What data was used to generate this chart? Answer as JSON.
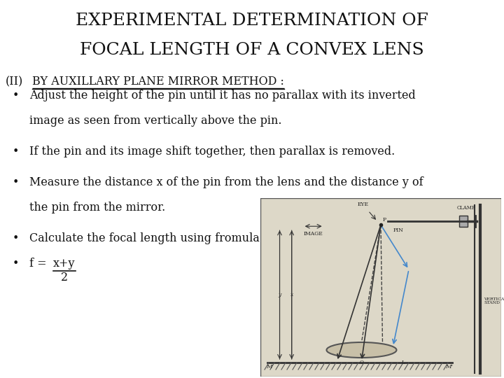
{
  "title_line1": "EXPERIMENTAL DETERMINATION OF",
  "title_line2": "FOCAL LENGTH OF A CONVEX LENS",
  "subtitle_prefix": "(II)",
  "subtitle_underlined": "BY AUXILLARY PLANE MIRROR METHOD :",
  "bullet1": "Adjust the height of the pin until it has no parallax with its inverted",
  "bullet1b": "image as seen from vertically above the pin.",
  "bullet2": "If the pin and its image shift together, then parallax is removed.",
  "bullet3": "Measure the distance x of the pin from the lens and the distance y of",
  "bullet3b": "the pin from the mirror.",
  "bullet4": "Calculate the focal length using fromula",
  "formula_f": "f =",
  "formula_num": "x+y",
  "formula_den": "2",
  "background_color": "#ffffff",
  "text_color": "#111111",
  "title_fontsize": 18,
  "subtitle_fontsize": 11.5,
  "body_fontsize": 11.5,
  "diagram_bg": "#ddd8c8",
  "diagram_border": "#888888",
  "blue_color": "#4488cc",
  "dark_color": "#222222"
}
